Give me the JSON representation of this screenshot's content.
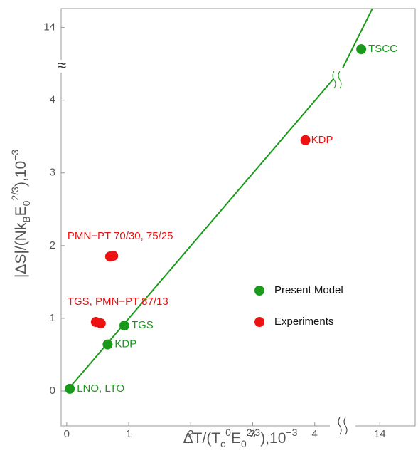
{
  "chart_data": {
    "type": "scatter",
    "x_label_parts": [
      {
        "text": "ΔT/(T"
      },
      {
        "text": "c",
        "sub": true
      },
      {
        "text": "0",
        "sup": true
      },
      {
        "text": "E"
      },
      {
        "text": "0",
        "sub": true
      },
      {
        "text": "2/3",
        "sup": true
      },
      {
        "text": "),10"
      },
      {
        "text": "−3",
        "sup": true
      }
    ],
    "y_label_parts": [
      {
        "text": "|ΔS|/(Nk"
      },
      {
        "text": "B",
        "sub": true
      },
      {
        "text": "E"
      },
      {
        "text": "0",
        "sub": true
      },
      {
        "text": "2/3",
        "sup": true
      },
      {
        "text": "),10"
      },
      {
        "text": "−3",
        "sup": true
      }
    ],
    "xlim": [
      -0.09,
      14.57
    ],
    "ylim": [
      -0.48,
      14.26
    ],
    "xbreak": [
      4.5,
      13.45
    ],
    "ybreak": [
      4.5,
      13.5
    ],
    "xticks": [
      0,
      1,
      2,
      3,
      4,
      14
    ],
    "yticks": [
      0,
      1,
      2,
      3,
      4,
      14
    ],
    "fit_line": {
      "color": "#1a9a1a",
      "x": [
        0,
        4.3,
        null,
        4.45,
        13.88
      ],
      "y": [
        0,
        4.29,
        null,
        4.44,
        14.26
      ]
    },
    "series": [
      {
        "name": "Present Model",
        "color": "#1a9a1a",
        "x": [
          0.05,
          0.66,
          0.93,
          13.7
        ],
        "values": [
          0.03,
          0.64,
          0.9,
          13.7
        ],
        "labels": [
          "LNO, LTO",
          "KDP",
          "TGS",
          "TSCC"
        ]
      },
      {
        "name": "Experiments",
        "color": "#ee1111",
        "x": [
          0.47,
          0.55,
          0.7,
          0.75,
          3.85
        ],
        "values": [
          0.95,
          0.93,
          1.85,
          1.86,
          3.45
        ],
        "labels": [
          "TGS, PMN−PT 87/13",
          null,
          "PMN−PT 70/30, 75/25",
          null,
          "KDP"
        ]
      }
    ]
  }
}
